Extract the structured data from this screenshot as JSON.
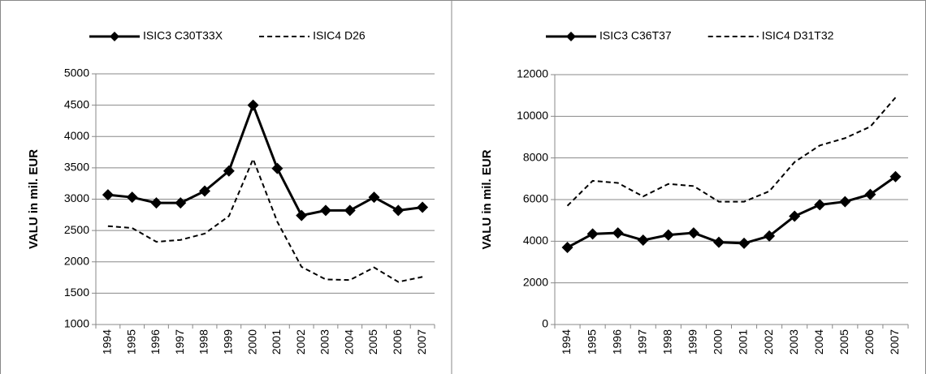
{
  "chart_data": [
    {
      "type": "line",
      "y_label": "VALU in  mil. EUR",
      "categories": [
        "1994",
        "1995",
        "1996",
        "1997",
        "1998",
        "1999",
        "2000",
        "2001",
        "2002",
        "2003",
        "2004",
        "2005",
        "2006",
        "2007"
      ],
      "series": [
        {
          "name": "ISIC3 C30T33X",
          "color": "#000000",
          "style": "solid",
          "marker": "diamond",
          "values": [
            3070,
            3030,
            2940,
            2940,
            3130,
            3450,
            4500,
            3490,
            2740,
            2820,
            2820,
            3030,
            2820,
            2870
          ]
        },
        {
          "name": "ISIC4 D26",
          "color": "#000000",
          "style": "dashed",
          "marker": "none",
          "values": [
            2570,
            2540,
            2320,
            2350,
            2450,
            2730,
            3640,
            2640,
            1920,
            1720,
            1710,
            1910,
            1680,
            1760
          ]
        }
      ],
      "ylim": [
        1000,
        5000
      ],
      "yticks": [
        1000,
        1500,
        2000,
        2500,
        3000,
        3500,
        4000,
        4500,
        5000
      ],
      "grid": true
    },
    {
      "type": "line",
      "y_label": "VALU in  mil. EUR",
      "categories": [
        "1994",
        "1995",
        "1996",
        "1997",
        "1998",
        "1999",
        "2000",
        "2001",
        "2002",
        "2003",
        "2004",
        "2005",
        "2006",
        "2007"
      ],
      "series": [
        {
          "name": "ISIC3 C36T37",
          "color": "#000000",
          "style": "solid",
          "marker": "diamond",
          "values": [
            3700,
            4350,
            4400,
            4050,
            4300,
            4400,
            3950,
            3900,
            4250,
            5200,
            5750,
            5900,
            6250,
            7100
          ]
        },
        {
          "name": "ISIC4 D31T32",
          "color": "#000000",
          "style": "dashed",
          "marker": "none",
          "values": [
            5700,
            6900,
            6800,
            6150,
            6750,
            6650,
            5900,
            5900,
            6400,
            7800,
            8600,
            8950,
            9500,
            10900
          ]
        }
      ],
      "ylim": [
        0,
        12000
      ],
      "yticks": [
        0,
        2000,
        4000,
        6000,
        8000,
        10000,
        12000
      ],
      "grid": true
    }
  ]
}
